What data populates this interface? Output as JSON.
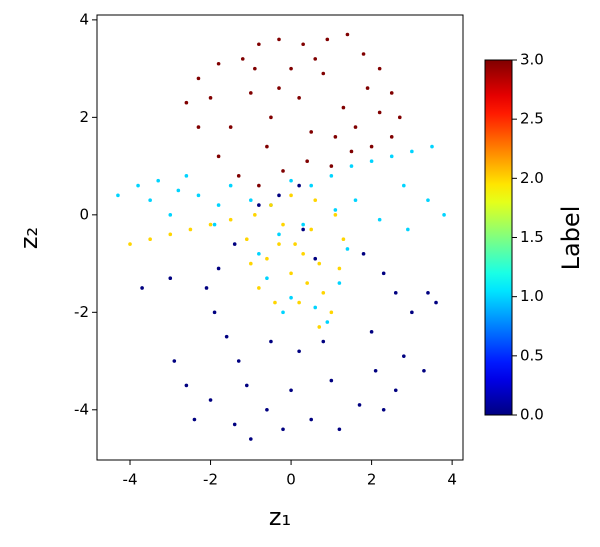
{
  "chart_data": {
    "type": "scatter",
    "xlabel": "z₁",
    "ylabel": "z₂",
    "colorbar_label": "Label",
    "colormap": "jet",
    "xlim": [
      -4.82,
      4.27
    ],
    "ylim": [
      -5.03,
      4.1
    ],
    "xticks": [
      -4,
      -2,
      0,
      2,
      4
    ],
    "yticks": [
      -4,
      -2,
      0,
      2,
      4
    ],
    "clim": [
      0,
      3
    ],
    "cticks": [
      {
        "value": 0,
        "label": "0.0"
      },
      {
        "value": 0.5,
        "label": "0.5"
      },
      {
        "value": 1,
        "label": "1.0"
      },
      {
        "value": 1.5,
        "label": "1.5"
      },
      {
        "value": 2,
        "label": "2.0"
      },
      {
        "value": 2.5,
        "label": "2.5"
      },
      {
        "value": 3,
        "label": "3.0"
      }
    ],
    "x": [
      -1.2,
      -0.8,
      -0.3,
      0.3,
      0.9,
      1.4,
      1.8,
      2.2,
      2.5,
      2.7,
      2.5,
      2.0,
      1.5,
      1.0,
      0.4,
      -0.2,
      -0.8,
      -1.3,
      -1.8,
      -2.3,
      -2.6,
      -2.3,
      -1.8,
      -1.0,
      -0.5,
      0.2,
      0.8,
      1.3,
      1.9,
      -1.5,
      0.0,
      0.5,
      -0.6,
      1.6,
      2.2,
      -2.0,
      -0.9,
      0.6,
      1.1,
      -0.3,
      -4.3,
      -3.8,
      -3.3,
      -2.8,
      -2.3,
      -1.8,
      -3.5,
      -2.6,
      -1.5,
      -1.0,
      -0.5,
      1.0,
      1.5,
      2.0,
      2.5,
      3.0,
      3.5,
      2.8,
      3.4,
      3.8,
      2.2,
      1.6,
      0.5,
      0.0,
      -0.8,
      -0.6,
      0.0,
      0.6,
      1.2,
      1.4,
      0.9,
      -0.3,
      0.3,
      -1.9,
      -3.0,
      2.9,
      -0.2,
      1.1,
      -4.0,
      -3.5,
      -3.0,
      -2.5,
      -2.0,
      -1.5,
      -1.1,
      -1.0,
      -0.8,
      -0.4,
      0.2,
      0.8,
      1.2,
      1.3,
      1.1,
      0.6,
      0.0,
      -0.5,
      -0.3,
      0.3,
      0.0,
      -0.6,
      0.7,
      0.5,
      -0.2,
      1.0,
      0.7,
      0.1,
      -0.9,
      0.4,
      -0.8,
      -0.3,
      0.2,
      -1.4,
      -1.8,
      -2.1,
      -3.7,
      -3.0,
      -1.9,
      -1.6,
      -1.3,
      -0.5,
      0.2,
      0.8,
      1.8,
      2.3,
      2.6,
      3.0,
      3.4,
      3.6,
      2.0,
      2.8,
      3.3,
      -2.9,
      -2.6,
      -2.0,
      -1.4,
      -1.0,
      -0.6,
      0.0,
      0.5,
      1.2,
      1.7,
      2.3,
      2.6,
      -2.4,
      -0.2,
      1.0,
      0.6,
      0.3,
      2.1,
      -1.1
    ],
    "y": [
      3.2,
      3.5,
      3.6,
      3.5,
      3.6,
      3.7,
      3.3,
      3.0,
      2.5,
      2.0,
      1.6,
      1.4,
      1.3,
      1.0,
      1.1,
      0.9,
      0.6,
      0.8,
      1.2,
      1.8,
      2.3,
      2.8,
      3.1,
      2.5,
      2.0,
      2.4,
      2.9,
      2.2,
      2.6,
      1.8,
      3.0,
      1.7,
      1.4,
      1.8,
      2.1,
      2.4,
      3.0,
      3.2,
      1.6,
      2.6,
      0.4,
      0.6,
      0.7,
      0.5,
      0.4,
      0.2,
      0.3,
      0.8,
      0.6,
      0.3,
      0.2,
      0.8,
      1.0,
      1.1,
      1.2,
      1.3,
      1.4,
      0.6,
      0.3,
      0.0,
      -0.1,
      0.3,
      0.6,
      0.7,
      -0.8,
      -1.3,
      -1.7,
      -1.9,
      -1.4,
      -0.7,
      -2.2,
      -0.4,
      -0.2,
      -0.2,
      0.0,
      -0.3,
      -2.0,
      0.1,
      -0.6,
      -0.5,
      -0.4,
      -0.3,
      -0.2,
      -0.1,
      -0.5,
      -1.0,
      -1.5,
      -1.8,
      -1.8,
      -1.6,
      -1.1,
      -0.5,
      0.0,
      0.3,
      0.4,
      0.2,
      -0.6,
      -0.8,
      -1.2,
      -0.9,
      -1.0,
      -0.3,
      -0.2,
      -2.0,
      -2.3,
      -0.6,
      0.0,
      -1.4,
      0.2,
      0.4,
      0.6,
      -0.6,
      -1.1,
      -1.5,
      -1.5,
      -1.3,
      -2.0,
      -2.5,
      -3.0,
      -2.6,
      -2.8,
      -2.6,
      -0.8,
      -1.2,
      -1.6,
      -2.0,
      -1.6,
      -1.8,
      -2.4,
      -2.9,
      -3.2,
      -3.0,
      -3.5,
      -3.8,
      -4.3,
      -4.6,
      -4.0,
      -3.6,
      -4.2,
      -4.4,
      -3.9,
      -4.0,
      -3.6,
      -4.2,
      -4.4,
      -3.4,
      -0.9,
      -0.3,
      -3.2,
      -3.5
    ],
    "c": [
      3,
      3,
      3,
      3,
      3,
      3,
      3,
      3,
      3,
      3,
      3,
      3,
      3,
      3,
      3,
      3,
      3,
      3,
      3,
      3,
      3,
      3,
      3,
      3,
      3,
      3,
      3,
      3,
      3,
      3,
      3,
      3,
      3,
      3,
      3,
      3,
      3,
      3,
      3,
      3,
      1,
      1,
      1,
      1,
      1,
      1,
      1,
      1,
      1,
      1,
      1,
      1,
      1,
      1,
      1,
      1,
      1,
      1,
      1,
      1,
      1,
      1,
      1,
      1,
      1,
      1,
      1,
      1,
      1,
      1,
      1,
      1,
      1,
      1,
      1,
      1,
      1,
      1,
      2,
      2,
      2,
      2,
      2,
      2,
      2,
      2,
      2,
      2,
      2,
      2,
      2,
      2,
      2,
      2,
      2,
      2,
      2,
      2,
      2,
      2,
      2,
      2,
      2,
      2,
      2,
      2,
      2,
      2,
      0,
      0,
      0,
      0,
      0,
      0,
      0,
      0,
      0,
      0,
      0,
      0,
      0,
      0,
      0,
      0,
      0,
      0,
      0,
      0,
      0,
      0,
      0,
      0,
      0,
      0,
      0,
      0,
      0,
      0,
      0,
      0,
      0,
      0,
      0,
      0,
      0,
      0,
      0,
      0,
      0,
      0
    ]
  }
}
